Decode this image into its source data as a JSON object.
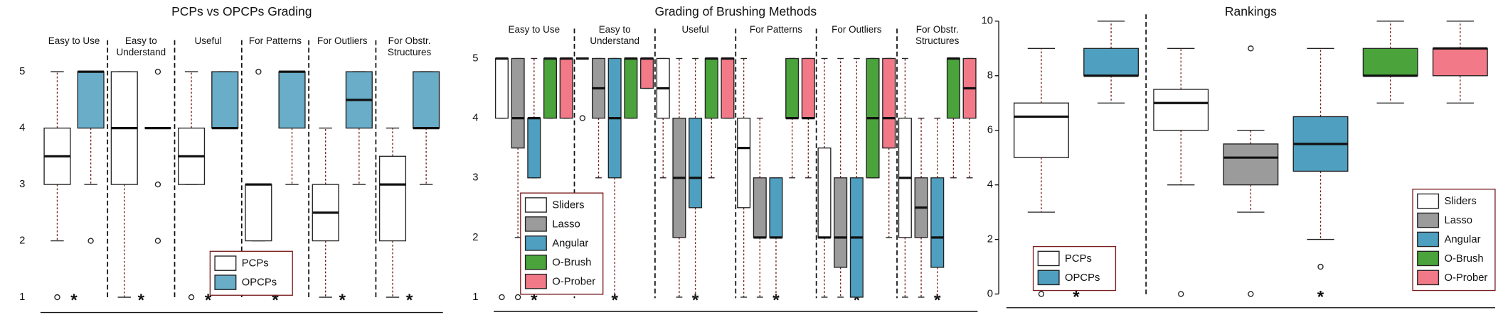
{
  "chart_data": [
    {
      "type": "box",
      "title": "PCPs vs OPCPs Grading",
      "groups": [
        {
          "label": "Easy to Use",
          "note": "*"
        },
        {
          "label": "Easy to Understand",
          "note": "*"
        },
        {
          "label": "Useful",
          "note": "*"
        },
        {
          "label": "For Patterns",
          "note": "*"
        },
        {
          "label": "For Outliers",
          "note": "*"
        },
        {
          "label": "For Obstr. Structures",
          "note": "*"
        }
      ],
      "series": [
        {
          "name": "PCPs",
          "color": "#ffffff",
          "boxes": [
            {
              "min": 2,
              "q1": 3,
              "median": 3.5,
              "q3": 4,
              "max": 5,
              "outliers": [
                1
              ]
            },
            {
              "min": 1,
              "q1": 3,
              "median": 4,
              "q3": 5,
              "max": 5,
              "outliers": []
            },
            {
              "min": 3,
              "q1": 3,
              "median": 3.5,
              "q3": 4,
              "max": 5,
              "outliers": [
                1
              ]
            },
            {
              "min": 2,
              "q1": 2,
              "median": 3,
              "q3": 3,
              "max": 3,
              "outliers": [
                5
              ]
            },
            {
              "min": 1,
              "q1": 2,
              "median": 2.5,
              "q3": 3,
              "max": 4,
              "outliers": []
            },
            {
              "min": 1,
              "q1": 2,
              "median": 3,
              "q3": 3.5,
              "max": 4,
              "outliers": []
            }
          ]
        },
        {
          "name": "OPCPs",
          "color": "#69adc9",
          "boxes": [
            {
              "min": 3,
              "q1": 4,
              "median": 5,
              "q3": 5,
              "max": 5,
              "outliers": [
                2
              ]
            },
            {
              "min": 4,
              "q1": 4,
              "median": 4,
              "q3": 4,
              "max": 4,
              "outliers": [
                5,
                3,
                2
              ]
            },
            {
              "min": 4,
              "q1": 4,
              "median": 4,
              "q3": 5,
              "max": 5,
              "outliers": []
            },
            {
              "min": 3,
              "q1": 4,
              "median": 5,
              "q3": 5,
              "max": 5,
              "outliers": []
            },
            {
              "min": 3,
              "q1": 4,
              "median": 4.5,
              "q3": 5,
              "max": 5,
              "outliers": []
            },
            {
              "min": 3,
              "q1": 4,
              "median": 4,
              "q3": 5,
              "max": 5,
              "outliers": []
            }
          ]
        }
      ],
      "ylim": [
        0.73,
        5.56
      ],
      "yticks": [
        1,
        2,
        3,
        4,
        5
      ],
      "legend": "lower center"
    },
    {
      "type": "box",
      "title": "Grading of Brushing Methods",
      "groups": [
        {
          "label": "Easy to Use",
          "note": "*"
        },
        {
          "label": "Easy to Understand",
          "note": "*"
        },
        {
          "label": "Useful",
          "note": "*"
        },
        {
          "label": "For Patterns",
          "note": "*"
        },
        {
          "label": "For Outliers",
          "note": "*"
        },
        {
          "label": "For Obstr. Structures",
          "note": "*"
        }
      ],
      "series": [
        {
          "name": "Sliders",
          "color": "#ffffff",
          "boxes": [
            {
              "min": 4,
              "q1": 4,
              "median": 5,
              "q3": 5,
              "max": 5,
              "outliers": [
                1
              ]
            },
            {
              "min": 5,
              "q1": 5,
              "median": 5,
              "q3": 5,
              "max": 5,
              "outliers": [
                4
              ]
            },
            {
              "min": 3,
              "q1": 4,
              "median": 4.5,
              "q3": 5,
              "max": 5,
              "outliers": []
            },
            {
              "min": 1,
              "q1": 2.5,
              "median": 3.5,
              "q3": 4,
              "max": 5,
              "outliers": []
            },
            {
              "min": 1,
              "q1": 2,
              "median": 2,
              "q3": 3.5,
              "max": 5,
              "outliers": []
            },
            {
              "min": 1,
              "q1": 2,
              "median": 3,
              "q3": 4,
              "max": 5,
              "outliers": []
            }
          ]
        },
        {
          "name": "Lasso",
          "color": "#9b9b9b",
          "boxes": [
            {
              "min": 2,
              "q1": 3.5,
              "median": 4,
              "q3": 5,
              "max": 5,
              "outliers": [
                1
              ]
            },
            {
              "min": 3,
              "q1": 4,
              "median": 4.5,
              "q3": 5,
              "max": 5,
              "outliers": []
            },
            {
              "min": 1,
              "q1": 2,
              "median": 3,
              "q3": 4,
              "max": 5,
              "outliers": []
            },
            {
              "min": 1,
              "q1": 2,
              "median": 2,
              "q3": 3,
              "max": 4,
              "outliers": []
            },
            {
              "min": 1,
              "q1": 1.5,
              "median": 2,
              "q3": 3,
              "max": 5,
              "outliers": []
            },
            {
              "min": 1,
              "q1": 2,
              "median": 2.5,
              "q3": 3,
              "max": 4,
              "outliers": []
            }
          ]
        },
        {
          "name": "Angular",
          "color": "#4f9fc0",
          "boxes": [
            {
              "min": 3,
              "q1": 3,
              "median": 4,
              "q3": 4,
              "max": 5,
              "outliers": []
            },
            {
              "min": 1,
              "q1": 3,
              "median": 4,
              "q3": 5,
              "max": 5,
              "outliers": []
            },
            {
              "min": 1,
              "q1": 2.5,
              "median": 3,
              "q3": 4,
              "max": 5,
              "outliers": []
            },
            {
              "min": 1,
              "q1": 2,
              "median": 2,
              "q3": 3,
              "max": 3,
              "outliers": []
            },
            {
              "min": 1,
              "q1": 1,
              "median": 2,
              "q3": 3,
              "max": 5,
              "outliers": []
            },
            {
              "min": 1,
              "q1": 1.5,
              "median": 2,
              "q3": 3,
              "max": 4,
              "outliers": []
            }
          ]
        },
        {
          "name": "O-Brush",
          "color": "#4ba33b",
          "boxes": [
            {
              "min": 4,
              "q1": 4,
              "median": 5,
              "q3": 5,
              "max": 5,
              "outliers": []
            },
            {
              "min": 4,
              "q1": 4,
              "median": 5,
              "q3": 5,
              "max": 5,
              "outliers": []
            },
            {
              "min": 3,
              "q1": 4,
              "median": 5,
              "q3": 5,
              "max": 5,
              "outliers": []
            },
            {
              "min": 3,
              "q1": 4,
              "median": 4,
              "q3": 5,
              "max": 5,
              "outliers": []
            },
            {
              "min": 3,
              "q1": 3,
              "median": 4,
              "q3": 5,
              "max": 5,
              "outliers": []
            },
            {
              "min": 3,
              "q1": 4,
              "median": 5,
              "q3": 5,
              "max": 5,
              "outliers": []
            }
          ]
        },
        {
          "name": "O-Prober",
          "color": "#f27a88",
          "boxes": [
            {
              "min": 4,
              "q1": 4,
              "median": 5,
              "q3": 5,
              "max": 5,
              "outliers": []
            },
            {
              "min": 4.5,
              "q1": 4.5,
              "median": 5,
              "q3": 5,
              "max": 5,
              "outliers": []
            },
            {
              "min": 4,
              "q1": 4,
              "median": 5,
              "q3": 5,
              "max": 5,
              "outliers": []
            },
            {
              "min": 3,
              "q1": 4,
              "median": 4,
              "q3": 5,
              "max": 5,
              "outliers": []
            },
            {
              "min": 2,
              "q1": 3.5,
              "median": 4,
              "q3": 5,
              "max": 5,
              "outliers": []
            },
            {
              "min": 3,
              "q1": 4,
              "median": 4.5,
              "q3": 5,
              "max": 5,
              "outliers": []
            }
          ]
        }
      ],
      "ylim": [
        0.76,
        5.5
      ],
      "yticks": [
        1,
        2,
        3,
        4,
        5
      ],
      "legend": "lower left"
    },
    {
      "type": "box",
      "title": "Rankings",
      "groups": [
        {
          "label": null,
          "note": "*"
        },
        {
          "label": null,
          "note": "*"
        }
      ],
      "series": [
        {
          "name": "PCPs",
          "color": "#ffffff",
          "boxes": [
            {
              "min": 3,
              "q1": 5,
              "median": 6.5,
              "q3": 7,
              "max": 9,
              "outliers": [
                0
              ]
            },
            null
          ]
        },
        {
          "name": "OPCPs",
          "color": "#4f9fc0",
          "boxes": [
            {
              "min": 7,
              "q1": 8,
              "median": 8,
              "q3": 9,
              "max": 10,
              "outliers": []
            },
            null
          ]
        },
        {
          "name": "Sliders",
          "color": "#ffffff",
          "boxes": [
            null,
            {
              "min": 4,
              "q1": 6,
              "median": 7,
              "q3": 7.5,
              "max": 9,
              "outliers": [
                0
              ]
            }
          ]
        },
        {
          "name": "Lasso",
          "color": "#9b9b9b",
          "boxes": [
            null,
            {
              "min": 3,
              "q1": 4,
              "median": 5,
              "q3": 5.5,
              "max": 6,
              "outliers": [
                9,
                0
              ]
            }
          ]
        },
        {
          "name": "Angular",
          "color": "#4f9fc0",
          "boxes": [
            null,
            {
              "min": 2,
              "q1": 4.5,
              "median": 5.5,
              "q3": 6.5,
              "max": 9,
              "outliers": [
                1
              ]
            }
          ]
        },
        {
          "name": "O-Brush",
          "color": "#4ba33b",
          "boxes": [
            null,
            {
              "min": 7,
              "q1": 8,
              "median": 8,
              "q3": 9,
              "max": 10,
              "outliers": []
            }
          ]
        },
        {
          "name": "O-Prober",
          "color": "#f27a88",
          "boxes": [
            null,
            {
              "min": 7,
              "q1": 8,
              "median": 9,
              "q3": 9,
              "max": 10,
              "outliers": []
            }
          ]
        }
      ],
      "ylim": [
        -0.5,
        10.25
      ],
      "yticks": [
        0,
        2,
        4,
        6,
        8,
        10
      ],
      "legend": [
        "lower left",
        "lower right"
      ]
    }
  ]
}
